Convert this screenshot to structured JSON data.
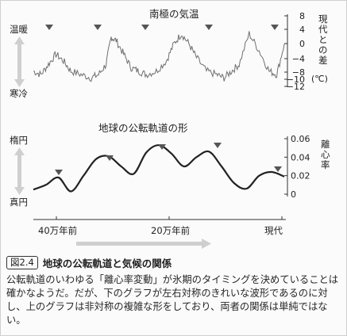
{
  "top_chart": {
    "title": "南極の気温",
    "label_warm": "温暖",
    "label_cold": "寒冷",
    "yaxis_ticks": [
      "8",
      "4",
      "0",
      "−4",
      "−8",
      "−10",
      "−12"
    ],
    "ylabel_vertical": "現代との差",
    "yunit": "(℃)"
  },
  "bottom_chart": {
    "title": "地球の公転軌道の形",
    "label_ellipse": "楕円",
    "label_circle": "真円",
    "yaxis_ticks": [
      "0.06",
      "0.04",
      "0.02",
      "0"
    ],
    "ylabel_vertical": "離心率"
  },
  "time_axis": {
    "labels": [
      "40万年前",
      "20万年前",
      "現代"
    ]
  },
  "caption": {
    "figure_number": "図2.4",
    "title": "地球の公転軌道と気候の関係",
    "body": "公転軌道のいわゆる「離心率変動」が氷期のタイミングを決めていることは確かなようだ。だが、下のグラフが左右対称のきれいな波形であるのに対し、上のグラフは非対称の複雑な形をしており、両者の関係は単純ではない。"
  },
  "chart_data": [
    {
      "type": "line",
      "title": "南極の気温",
      "xlabel": "",
      "ylabel": "現代との差 (℃)",
      "x_direction": "past to present",
      "ylim": [
        -12,
        8
      ],
      "x": [
        0,
        0.03,
        0.06,
        0.09,
        0.12,
        0.15,
        0.19,
        0.23,
        0.26,
        0.29,
        0.31,
        0.33,
        0.36,
        0.39,
        0.42,
        0.45,
        0.49,
        0.53,
        0.56,
        0.59,
        0.62,
        0.65,
        0.69,
        0.73,
        0.76,
        0.79,
        0.82,
        0.86,
        0.9,
        0.94,
        0.97,
        1.0
      ],
      "values": [
        -8,
        -9,
        -6,
        -3,
        -5,
        -8,
        -9,
        -10,
        -9,
        -6,
        2,
        1,
        -3,
        -7,
        -8,
        -9,
        -8,
        -5,
        0,
        3,
        0,
        -4,
        -8,
        -9,
        -10,
        -8,
        -6,
        3,
        -2,
        -8,
        -9,
        0
      ],
      "peak_markers": 5
    },
    {
      "type": "line",
      "title": "地球の公転軌道の形",
      "xlabel": "",
      "ylabel": "離心率",
      "x_direction": "past to present",
      "ylim": [
        0,
        0.06
      ],
      "x": [
        0,
        0.05,
        0.1,
        0.15,
        0.2,
        0.25,
        0.3,
        0.35,
        0.4,
        0.45,
        0.5,
        0.55,
        0.6,
        0.65,
        0.7,
        0.75,
        0.8,
        0.85,
        0.9,
        0.95,
        1.0
      ],
      "values": [
        0.005,
        0.01,
        0.018,
        0.003,
        0.02,
        0.038,
        0.041,
        0.03,
        0.022,
        0.045,
        0.053,
        0.044,
        0.03,
        0.04,
        0.046,
        0.03,
        0.012,
        0.006,
        0.02,
        0.024,
        0.019
      ],
      "peak_markers": 5
    }
  ]
}
